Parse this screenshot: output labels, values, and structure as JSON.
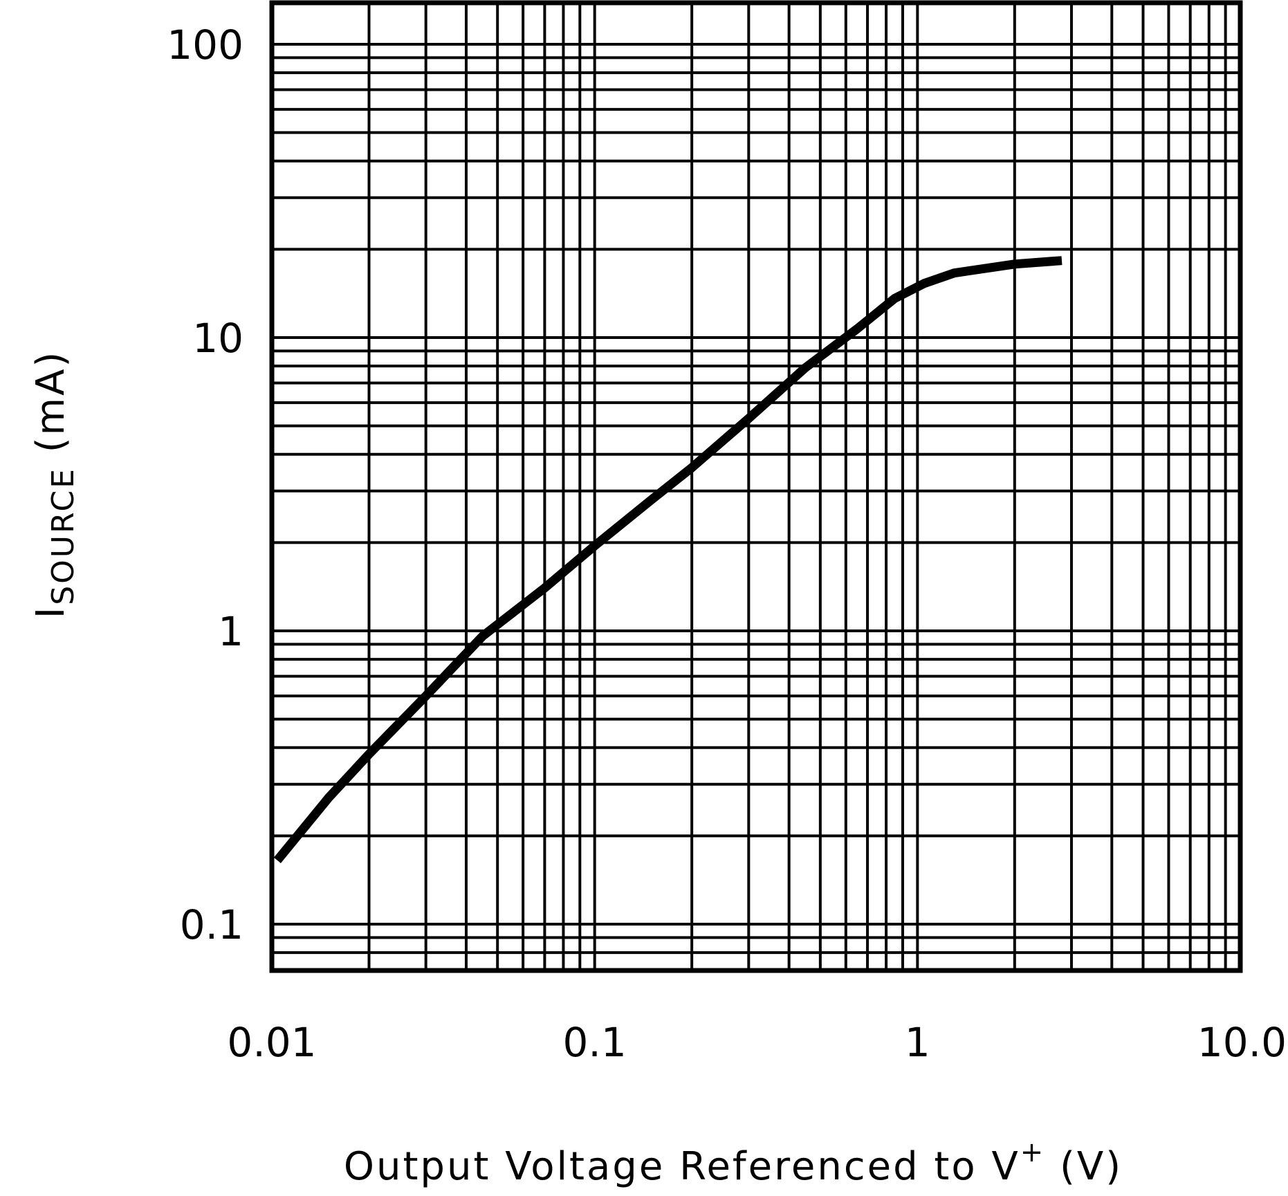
{
  "chart_data": {
    "type": "line",
    "title": "",
    "x_scale": "log",
    "y_scale": "log",
    "xlim": [
      0.01,
      10
    ],
    "ylim": [
      0.07,
      130
    ],
    "x_ticks": [
      {
        "value": 0.01,
        "label": "0.01"
      },
      {
        "value": 0.1,
        "label": "0.1"
      },
      {
        "value": 1,
        "label": "1"
      },
      {
        "value": 10,
        "label": "10.0"
      }
    ],
    "y_ticks": [
      {
        "value": 0.1,
        "label": "0.1"
      },
      {
        "value": 1,
        "label": "1"
      },
      {
        "value": 10,
        "label": "10"
      },
      {
        "value": 100,
        "label": "100"
      }
    ],
    "xlabel": {
      "main": "Output Voltage Referenced to V",
      "sup": "+",
      "unit": " (V)"
    },
    "ylabel": {
      "main": "I",
      "sub": "SOURCE",
      "unit": " (mA)"
    },
    "grid": true,
    "series": [
      {
        "x": [
          0.0104,
          0.015,
          0.02,
          0.03,
          0.045,
          0.07,
          0.1,
          0.15,
          0.2,
          0.3,
          0.45,
          0.65,
          0.85,
          1.05,
          1.3,
          2.0,
          2.8
        ],
        "y": [
          0.165,
          0.27,
          0.38,
          0.6,
          0.96,
          1.4,
          1.95,
          2.8,
          3.6,
          5.3,
          7.9,
          10.7,
          13.6,
          15.3,
          16.6,
          17.8,
          18.3
        ]
      }
    ],
    "colors": {
      "line": "#000000",
      "grid": "#000000",
      "background": "#ffffff"
    }
  }
}
